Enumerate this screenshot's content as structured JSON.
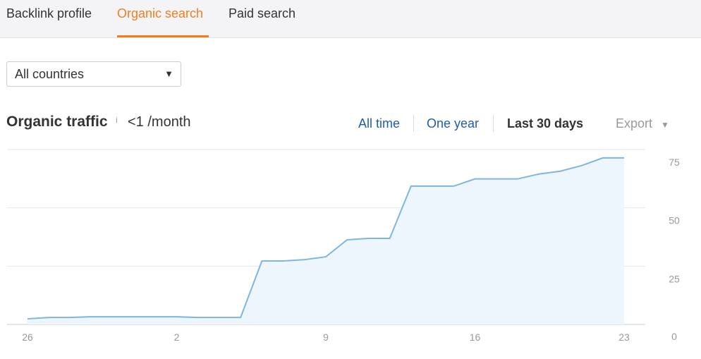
{
  "tabs": [
    "Backlink profile",
    "Organic search",
    "Paid search"
  ],
  "filter": "All countries",
  "traffic": {
    "label": "Organic traffic",
    "info": "i",
    "value": "<1 /month"
  },
  "ranges": [
    "All time",
    "One year",
    "Last 30 days"
  ],
  "export": "Export",
  "chart_data": {
    "type": "area",
    "categories": [
      "26",
      null,
      null,
      null,
      null,
      null,
      null,
      "2",
      null,
      null,
      null,
      null,
      null,
      null,
      "9",
      null,
      null,
      null,
      null,
      null,
      null,
      "16",
      null,
      null,
      null,
      null,
      null,
      null,
      "23"
    ],
    "series": [
      {
        "color": "#7eb6e0",
        "values": [
          2.4,
          3,
          3,
          3.3,
          3.3,
          3.3,
          3.3,
          3.3,
          3,
          3,
          3,
          27.2,
          27.2,
          27.8,
          29,
          36.3,
          36.9,
          36.9,
          59.3,
          59.3,
          59.3,
          62.4,
          62.4,
          62.4,
          64.5,
          65.7,
          68.1,
          71.4,
          71.4
        ]
      }
    ],
    "ylim": [
      0,
      75
    ],
    "yticks": [
      0,
      25,
      50,
      75
    ],
    "grid": true
  }
}
